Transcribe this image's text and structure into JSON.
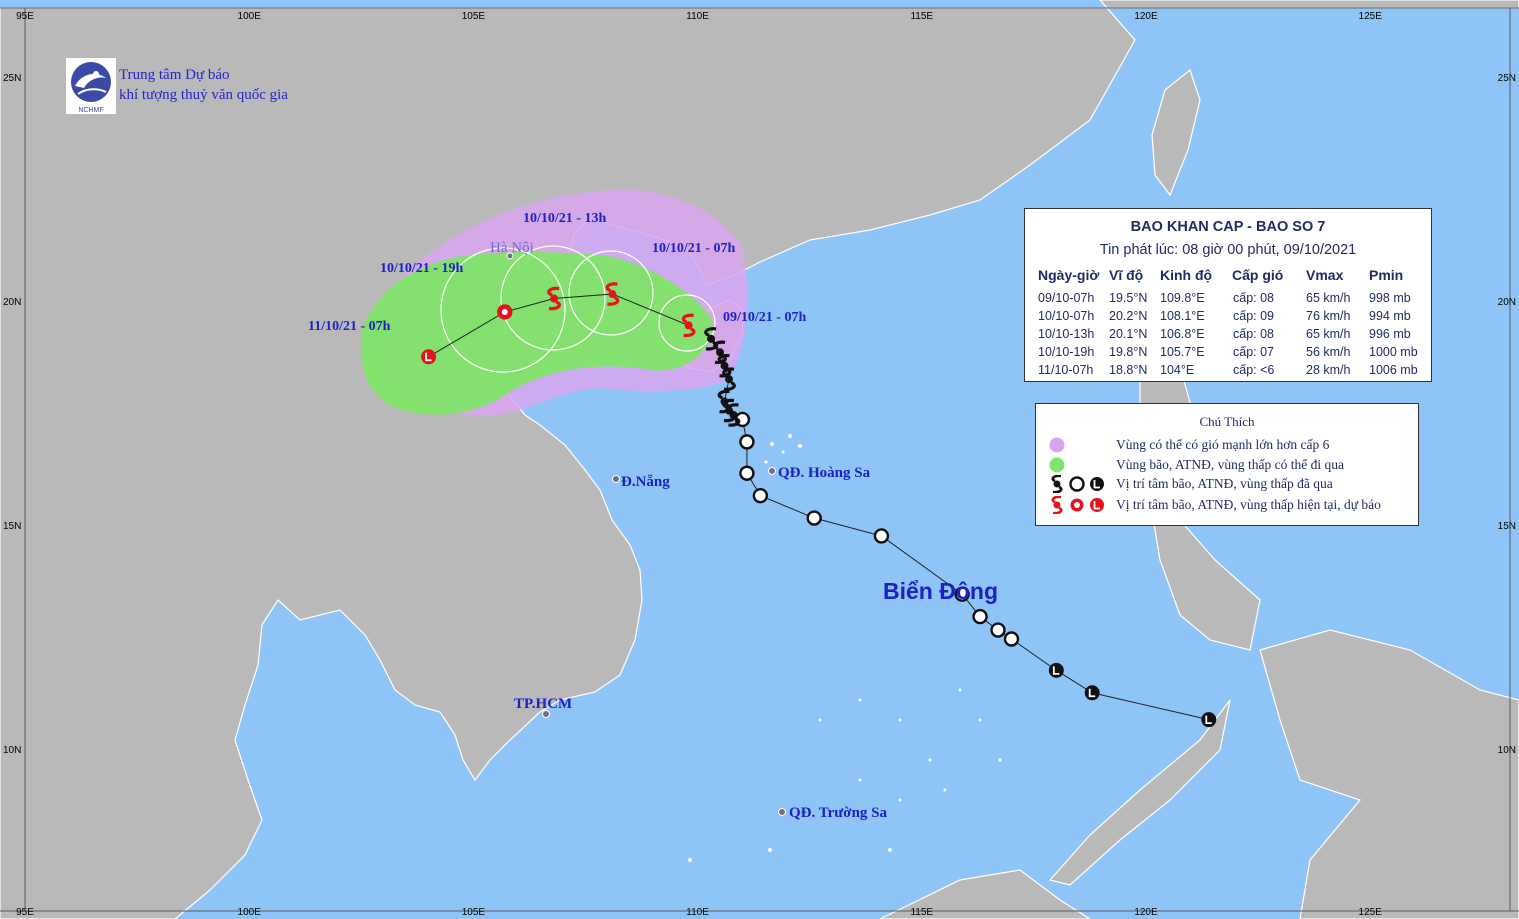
{
  "axis": {
    "lon_labels": [
      "95E",
      "100E",
      "105E",
      "110E",
      "115E",
      "120E",
      "125E"
    ],
    "lat_labels": [
      "25N",
      "20N",
      "15N",
      "10N"
    ]
  },
  "organization": {
    "logo_text": "NCHMF",
    "line1": "Trung tâm Dự báo",
    "line2": "khí tượng thuỷ văn quốc gia"
  },
  "bulletin": {
    "title": "BAO KHAN CAP - BAO SO 7",
    "subtitle": "Tin phát lúc: 08 giờ 00 phút, 09/10/2021",
    "columns": [
      "Ngày-giờ",
      "Vĩ độ",
      "Kinh độ",
      "Cấp gió",
      "Vmax",
      "Pmin"
    ],
    "rows": [
      [
        "09/10-07h",
        "19.5°N",
        "109.8°E",
        "cấp: 08",
        "65 km/h",
        "998 mb"
      ],
      [
        "10/10-07h",
        "20.2°N",
        "108.1°E",
        "cấp: 09",
        "76 km/h",
        "994 mb"
      ],
      [
        "10/10-13h",
        "20.1°N",
        "106.8°E",
        "cấp: 08",
        "65 km/h",
        "996 mb"
      ],
      [
        "10/10-19h",
        "19.8°N",
        "105.7°E",
        "cấp: 07",
        "56 km/h",
        "1000 mb"
      ],
      [
        "11/10-07h",
        "18.8°N",
        "104°E",
        "cấp: <6",
        "28 km/h",
        "1006 mb"
      ]
    ]
  },
  "legend": {
    "title": "Chú Thích",
    "items": [
      "Vùng có thể có gió mạnh lớn hơn cấp 6",
      "Vùng bão, ATNĐ, vùng thấp có thể đi qua",
      "Vị trí tâm bão, ATNĐ, vùng thấp đã qua",
      "Vị trí tâm bão, ATNĐ, vùng thấp hiện tại, dự báo"
    ]
  },
  "forecast_labels": [
    "09/10/21 - 07h",
    "10/10/21 - 07h",
    "10/10/21 - 13h",
    "10/10/21 - 19h",
    "11/10/21 - 07h"
  ],
  "places": {
    "hanoi": "Hà Nội",
    "danang": "Đ.Nẵng",
    "hoangsa": "QĐ. Hoàng Sa",
    "hcm": "TP.HCM",
    "truongsa": "QĐ. Trường Sa",
    "sea": "Biển Đông"
  },
  "forecast_track": [
    {
      "lat": 19.5,
      "lon": 109.8,
      "symbol": "storm"
    },
    {
      "lat": 20.2,
      "lon": 108.1,
      "symbol": "storm"
    },
    {
      "lat": 20.1,
      "lon": 106.8,
      "symbol": "storm"
    },
    {
      "lat": 19.8,
      "lon": 105.7,
      "symbol": "depression"
    },
    {
      "lat": 18.8,
      "lon": 104.0,
      "symbol": "low"
    }
  ],
  "past_track": [
    {
      "lat": 10.7,
      "lon": 121.4,
      "symbol": "low"
    },
    {
      "lat": 11.3,
      "lon": 118.8,
      "symbol": "low"
    },
    {
      "lat": 11.8,
      "lon": 118.0,
      "symbol": "low"
    },
    {
      "lat": 12.5,
      "lon": 117.0,
      "symbol": "depression"
    },
    {
      "lat": 12.7,
      "lon": 116.7,
      "symbol": "depression"
    },
    {
      "lat": 13.0,
      "lon": 116.3,
      "symbol": "depression"
    },
    {
      "lat": 13.5,
      "lon": 115.9,
      "symbol": "depression"
    },
    {
      "lat": 14.8,
      "lon": 114.1,
      "symbol": "depression"
    },
    {
      "lat": 15.2,
      "lon": 112.6,
      "symbol": "depression"
    },
    {
      "lat": 15.7,
      "lon": 111.4,
      "symbol": "depression"
    },
    {
      "lat": 16.2,
      "lon": 111.1,
      "symbol": "depression"
    },
    {
      "lat": 16.9,
      "lon": 111.1,
      "symbol": "depression"
    },
    {
      "lat": 17.4,
      "lon": 111.0,
      "symbol": "depression"
    },
    {
      "lat": 17.5,
      "lon": 110.8,
      "symbol": "storm"
    },
    {
      "lat": 17.6,
      "lon": 110.7,
      "symbol": "storm"
    },
    {
      "lat": 17.8,
      "lon": 110.6,
      "symbol": "storm"
    },
    {
      "lat": 18.3,
      "lon": 110.7,
      "symbol": "storm"
    },
    {
      "lat": 18.6,
      "lon": 110.6,
      "symbol": "storm"
    },
    {
      "lat": 18.9,
      "lon": 110.5,
      "symbol": "storm"
    },
    {
      "lat": 19.2,
      "lon": 110.3,
      "symbol": "storm"
    }
  ],
  "colors": {
    "sea": "#8fc4f6",
    "land": "#b9b9b9",
    "wind_zone": "#d9a6ee",
    "danger_zone": "#80e468",
    "forecast_symbol": "#e5131c",
    "past_symbol": "#111111",
    "label": "#1b21c4"
  }
}
